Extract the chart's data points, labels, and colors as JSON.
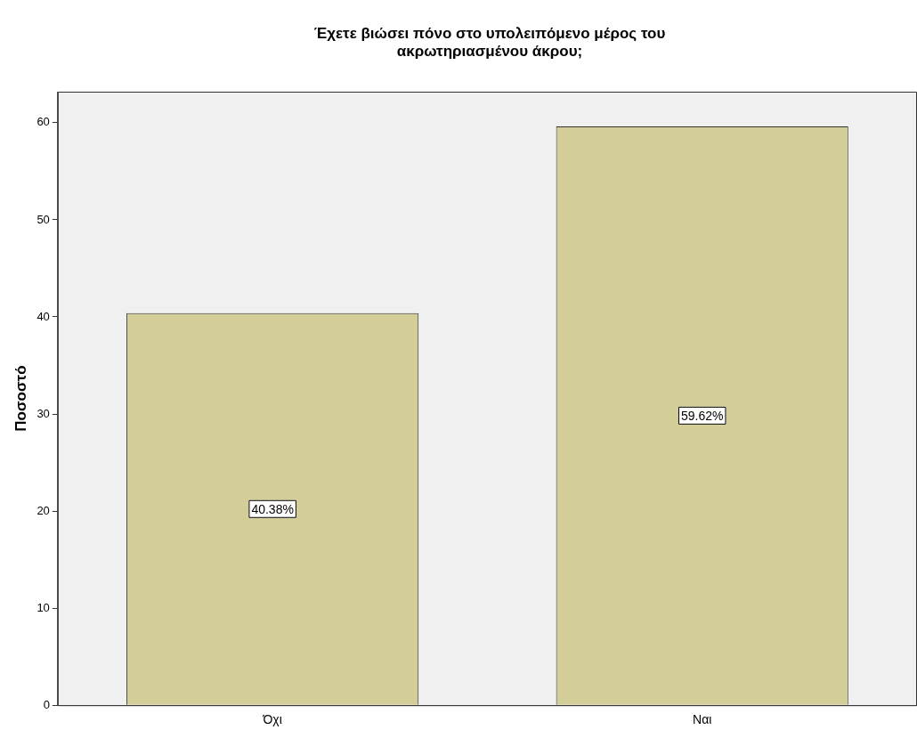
{
  "chart_data": {
    "type": "bar",
    "title": "Έχετε βιώσει πόνο στο υπολειπόμενο μέρος του ακρωτηριασμένου άκρου;",
    "ylabel": "Ποσοστό",
    "categories": [
      "Όχι",
      "Ναι"
    ],
    "values": [
      40.38,
      59.62
    ],
    "value_labels": [
      "40.38%",
      "59.62%"
    ],
    "color": "#d3ce97",
    "ylim": [
      0,
      63.2
    ],
    "yticks": [
      0,
      10,
      20,
      30,
      40,
      50,
      60
    ],
    "grid": false,
    "legend": false
  }
}
